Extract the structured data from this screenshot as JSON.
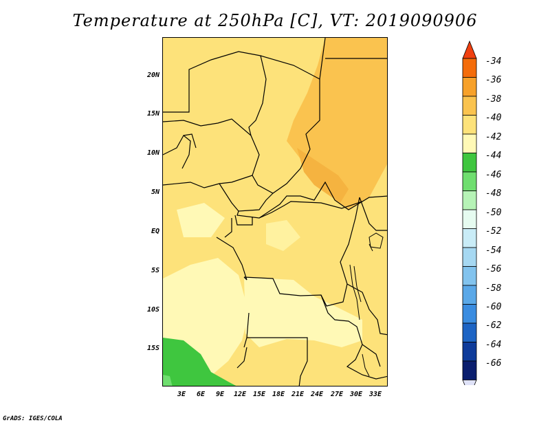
{
  "title": "Temperature at 250hPa [C], VT: 2019090906",
  "footer": "GrADS: IGES/COLA",
  "map": {
    "lat_range": [
      -20,
      24
    ],
    "lon_range": [
      0,
      36
    ],
    "lat_labels": [
      "20N",
      "15N",
      "10N",
      "5N",
      "EQ",
      "5S",
      "10S",
      "15S"
    ],
    "lon_labels": [
      "3E",
      "6E",
      "9E",
      "12E",
      "15E",
      "18E",
      "21E",
      "24E",
      "27E",
      "30E",
      "33E"
    ]
  },
  "colorbar": {
    "labels": [
      "-34",
      "-36",
      "-38",
      "-40",
      "-42",
      "-44",
      "-46",
      "-48",
      "-50",
      "-52",
      "-54",
      "-56",
      "-58",
      "-60",
      "-62",
      "-64",
      "-66"
    ],
    "colors": [
      "#f04010",
      "#f46c0a",
      "#f7a12a",
      "#fac34f",
      "#fde27a",
      "#fff9b6",
      "#3fc63f",
      "#6fde6f",
      "#b6f3b6",
      "#e6fbf0",
      "#c9ecf7",
      "#a6d8f2",
      "#82c3ee",
      "#5aa8e8",
      "#3a8ce0",
      "#1d64c4",
      "#0e3b9a",
      "#0a1e6e",
      "#dfe2f8"
    ]
  },
  "fields": {
    "c40_42": "#fde27a",
    "c42_44": "#fff9b6",
    "c38_40": "#fac34f",
    "c44_46": "#3fc63f",
    "c46_48": "#6fde6f"
  }
}
